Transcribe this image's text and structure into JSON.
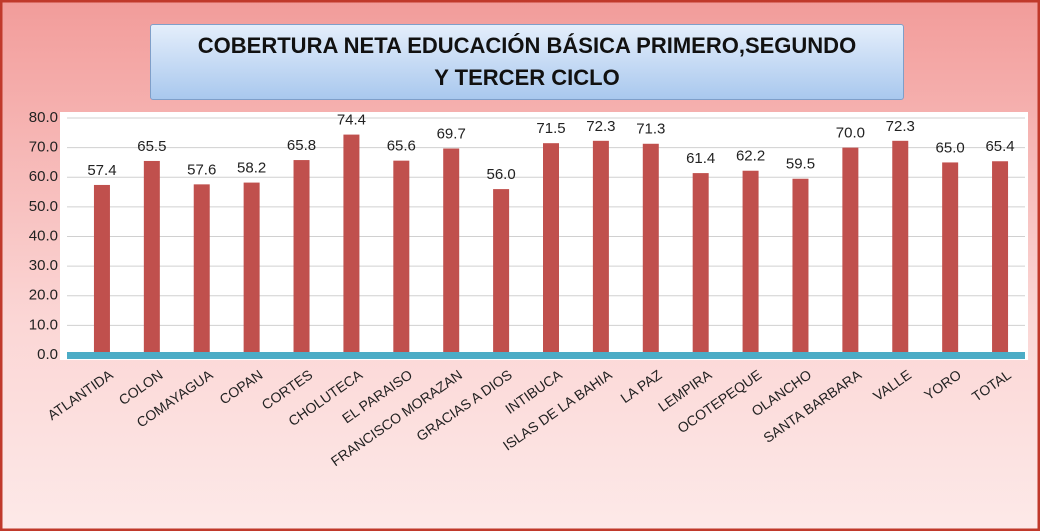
{
  "chart_data": {
    "type": "bar",
    "title": "COBERTURA NETA  EDUCACIÓN BÁSICA PRIMERO,SEGUNDO Y TERCER CICLO",
    "categories": [
      "ATLANTIDA",
      "COLON",
      "COMAYAGUA",
      "COPAN",
      "CORTES",
      "CHOLUTECA",
      "EL PARAISO",
      "FRANCISCO MORAZAN",
      "GRACIAS A DIOS",
      "INTIBUCA",
      "ISLAS DE LA BAHIA",
      "LA PAZ",
      "LEMPIRA",
      "OCOTEPEQUE",
      "OLANCHO",
      "SANTA BARBARA",
      "VALLE",
      "YORO",
      "TOTAL"
    ],
    "values": [
      57.4,
      65.5,
      57.6,
      58.2,
      65.8,
      74.4,
      65.6,
      69.7,
      56.0,
      71.5,
      72.3,
      71.3,
      61.4,
      62.2,
      59.5,
      70.0,
      72.3,
      65.0,
      65.4
    ],
    "value_labels": [
      "57.4",
      "65.5",
      "57.6",
      "58.2",
      "65.8",
      "74.4",
      "65.6",
      "69.7",
      "56.0",
      "71.5",
      "72.3",
      "71.3",
      "61.4",
      "62.2",
      "59.5",
      "70.0",
      "72.3",
      "65.0",
      "65.4"
    ],
    "color": "#c0504d",
    "ylim": [
      0,
      80
    ],
    "yticks": [
      {
        "value": 0,
        "label": "0.0"
      },
      {
        "value": 10,
        "label": "10.0"
      },
      {
        "value": 20,
        "label": "20.0"
      },
      {
        "value": 30,
        "label": "30.0"
      },
      {
        "value": 40,
        "label": "40.0"
      },
      {
        "value": 50,
        "label": "50.0"
      },
      {
        "value": 60,
        "label": "60.0"
      },
      {
        "value": 70,
        "label": "70.0"
      },
      {
        "value": 80,
        "label": "80.0"
      }
    ],
    "grid": true
  }
}
